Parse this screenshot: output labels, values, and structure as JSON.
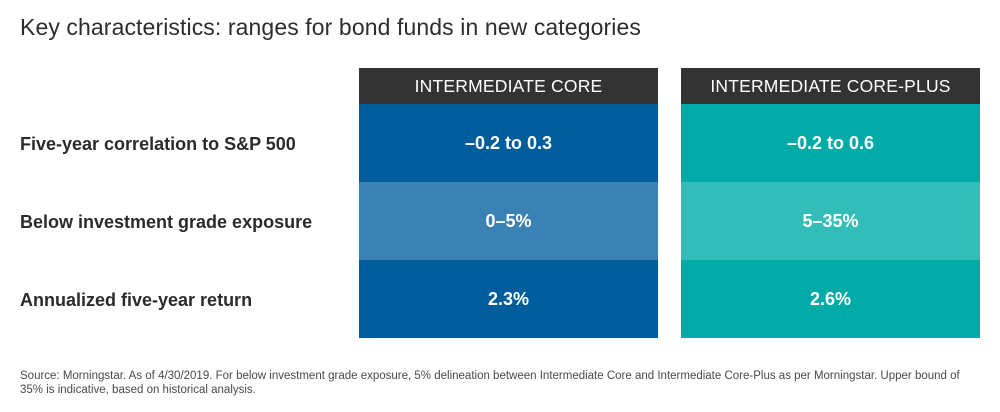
{
  "title": "Key characteristics: ranges for bond funds in new categories",
  "colors": {
    "core_dark": "#005d9c",
    "core_light": "#3a82b3",
    "coreplus_dark": "#00aaa6",
    "coreplus_light": "#33bdb9",
    "header": "#333333"
  },
  "chart_data": {
    "type": "table",
    "columns": [
      "INTERMEDIATE CORE",
      "INTERMEDIATE CORE-PLUS"
    ],
    "rows": [
      {
        "label": "Five-year correlation to S&P 500",
        "values": [
          "–0.2 to 0.3",
          "–0.2 to 0.6"
        ]
      },
      {
        "label": "Below investment grade exposure",
        "values": [
          "0–5%",
          "5–35%"
        ]
      },
      {
        "label": "Annualized five-year return",
        "values": [
          "2.3%",
          "2.6%"
        ]
      }
    ]
  },
  "source": "Source: Morningstar. As of 4/30/2019. For below investment grade exposure, 5% delineation between Intermediate Core and Intermediate Core-Plus as per Morningstar. Upper bound of 35% is indicative, based on historical analysis."
}
